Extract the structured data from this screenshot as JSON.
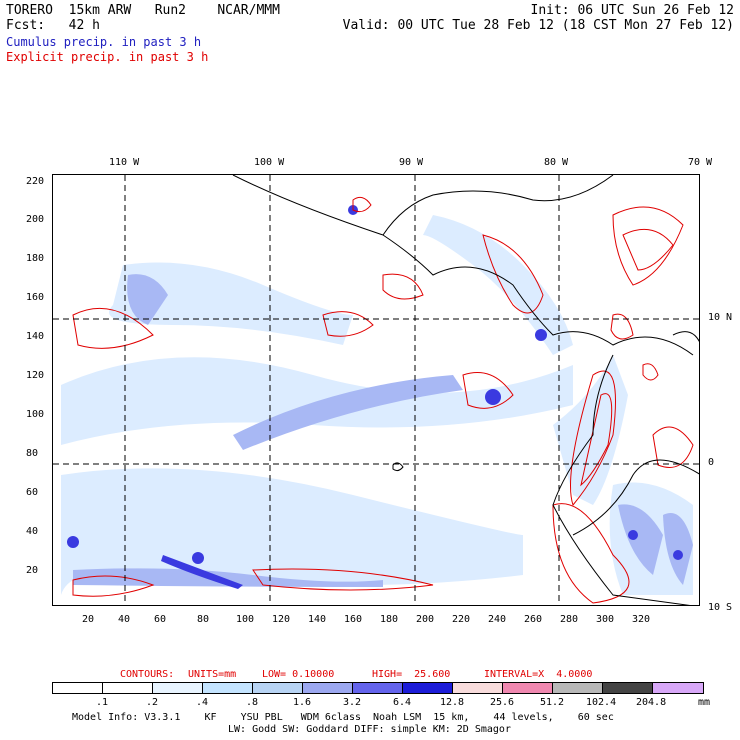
{
  "header": {
    "line1_left": "TORERO  15km ARW   Run2    NCAR/MMM",
    "line1_right": "Init: 06 UTC Sun 26 Feb 12",
    "line2_left": "Fcst:   42 h",
    "line2_right": "Valid: 00 UTC Tue 28 Feb 12 (18 CST Mon 27 Feb 12)",
    "legend_cumulus": "Cumulus precip. in past 3 h",
    "legend_explicit": "Explicit precip. in past 3 h",
    "legend_cumulus_color": "#2020c0",
    "legend_explicit_color": "#e00000"
  },
  "map": {
    "top_lon_labels": [
      "110 W",
      "100 W",
      "90 W",
      "80 W",
      "70 W"
    ],
    "right_lat_labels": [
      "10 N",
      "0",
      "10 S"
    ],
    "left_grid_labels": [
      "220",
      "200",
      "180",
      "160",
      "140",
      "120",
      "100",
      "80",
      "60",
      "40",
      "20"
    ],
    "bottom_grid_labels": [
      "20",
      "40",
      "60",
      "80",
      "100",
      "120",
      "140",
      "160",
      "180",
      "200",
      "220",
      "240",
      "260",
      "280",
      "300",
      "320"
    ]
  },
  "contours_line": {
    "contours": "CONTOURS:",
    "units": "UNITS=mm",
    "low": "LOW= 0.10000",
    "high": "HIGH=  25.600",
    "interval": "INTERVAL=X  4.0000"
  },
  "colorbar": {
    "labels": [
      ".1",
      ".2",
      ".4",
      ".8",
      "1.6",
      "3.2",
      "6.4",
      "12.8",
      "25.6",
      "51.2",
      "102.4",
      "204.8"
    ],
    "units": "mm",
    "colors": [
      "#ffffff",
      "#ffffff",
      "#e8f4ff",
      "#c4e4ff",
      "#b8d4f4",
      "#9ca8f0",
      "#6464ec",
      "#1c1cd8",
      "#f8dcdc",
      "#f088b0",
      "#b8b8b8",
      "#444444",
      "#d8a8f8"
    ]
  },
  "footer": {
    "line1": "Model Info: V3.3.1    KF    YSU PBL   WDM 6class  Noah LSM  15 km,    44 levels,    60 sec",
    "line2": "LW: Godd SW: Goddard DIFF: simple KM: 2D Smagor"
  }
}
